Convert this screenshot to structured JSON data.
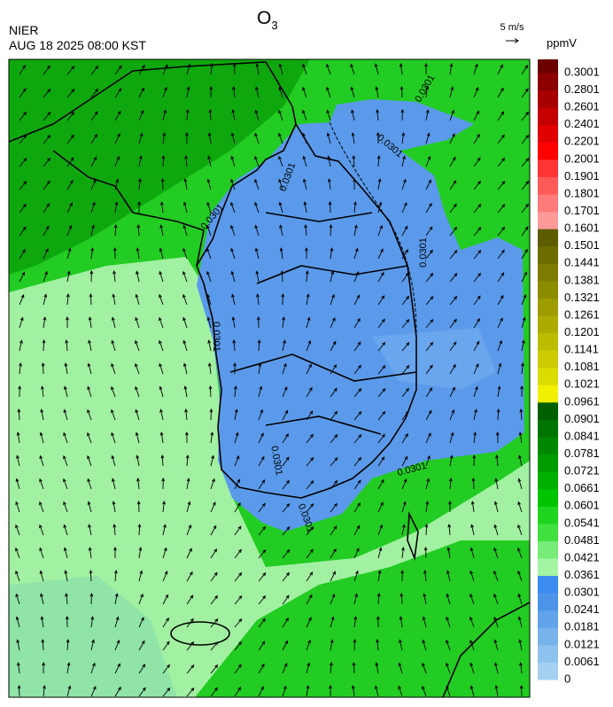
{
  "header": {
    "agency": "NIER",
    "timestamp": "AUG 18 2025 08:00 KST",
    "title": "O",
    "title_subscript": "3"
  },
  "wind_scale": "5 m/s",
  "colorbar": {
    "unit": "ppmV",
    "ticks": [
      0,
      0.0061,
      0.0121,
      0.0181,
      0.0241,
      0.0301,
      0.0361,
      0.0421,
      0.0481,
      0.0541,
      0.0601,
      0.0661,
      0.0721,
      0.0781,
      0.0841,
      0.0901,
      0.0961,
      0.1021,
      0.1081,
      0.1141,
      0.1201,
      0.1261,
      0.1321,
      0.1381,
      0.1441,
      0.1501,
      0.1601,
      0.1701,
      0.1801,
      0.1901,
      0.2001,
      0.2201,
      0.2401,
      0.2601,
      0.2801,
      0.3001
    ],
    "colors": [
      "#a6d0f2",
      "#8ec2ef",
      "#78b3ec",
      "#62a3ea",
      "#4d94e8",
      "#3c8cf0",
      "#a4f4a4",
      "#78ec78",
      "#40e040",
      "#1ed41e",
      "#00c400",
      "#00b000",
      "#009c00",
      "#008800",
      "#007400",
      "#006000",
      "#f0f000",
      "#dcdc00",
      "#cccc00",
      "#bcbc00",
      "#acac00",
      "#9c9c00",
      "#8c8c00",
      "#7c7c00",
      "#6c6c00",
      "#5c5c00",
      "#ff9a9a",
      "#ff7a7a",
      "#ff5a5a",
      "#ff3434",
      "#ff0000",
      "#e00000",
      "#c40000",
      "#a80000",
      "#8c0000",
      "#6c0000"
    ]
  },
  "contour_labels": [
    "0.0301",
    "0.0301",
    "0.0301",
    "0.0301",
    "0.0301",
    "0.0301",
    "0.0301",
    "0.0301",
    "0.0301"
  ]
}
